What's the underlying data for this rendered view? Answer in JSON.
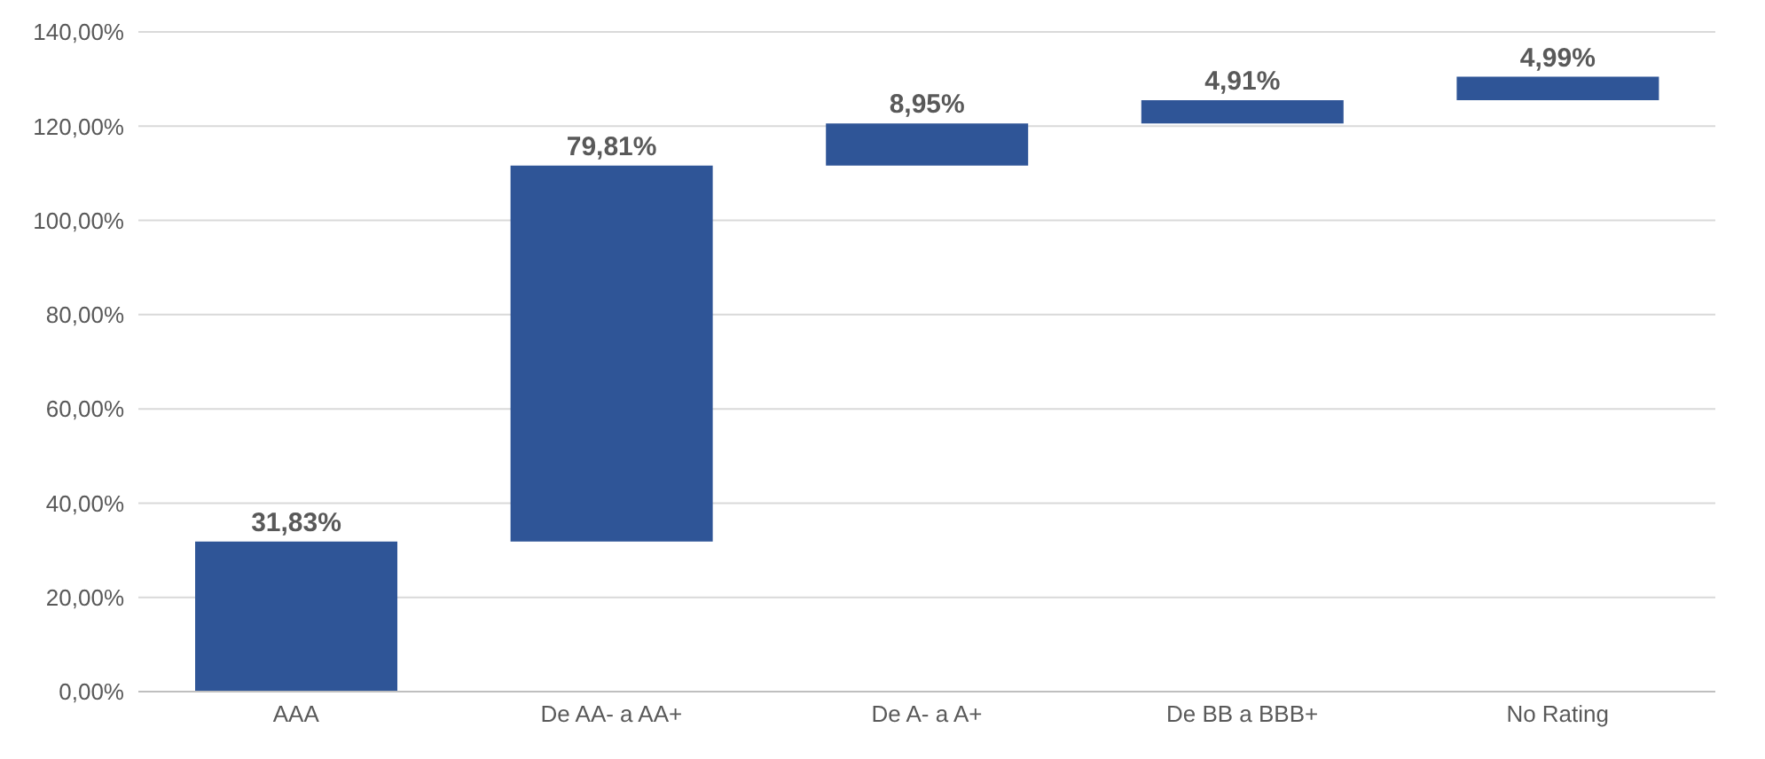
{
  "chart_data": {
    "type": "bar",
    "categories": [
      "AAA",
      "De AA- a AA+",
      "De A- a A+",
      "De BB a BBB+",
      "No Rating"
    ],
    "values": [
      31.83,
      79.81,
      8.95,
      4.91,
      4.99
    ],
    "base": [
      0,
      31.83,
      111.64,
      120.59,
      125.5
    ],
    "color": "#2f5597",
    "value_labels": [
      "31,83%",
      "79,81%",
      "8,95%",
      "4,91%",
      "4,99%"
    ],
    "ylim": [
      0,
      140
    ],
    "yticks": [
      {
        "value": 0,
        "label": "0,00%"
      },
      {
        "value": 20,
        "label": "20,00%"
      },
      {
        "value": 40,
        "label": "40,00%"
      },
      {
        "value": 60,
        "label": "60,00%"
      },
      {
        "value": 80,
        "label": "80,00%"
      },
      {
        "value": 100,
        "label": "100,00%"
      },
      {
        "value": 120,
        "label": "120,00%"
      },
      {
        "value": 140,
        "label": "140,00%"
      }
    ],
    "grid": "y",
    "legend": false
  }
}
